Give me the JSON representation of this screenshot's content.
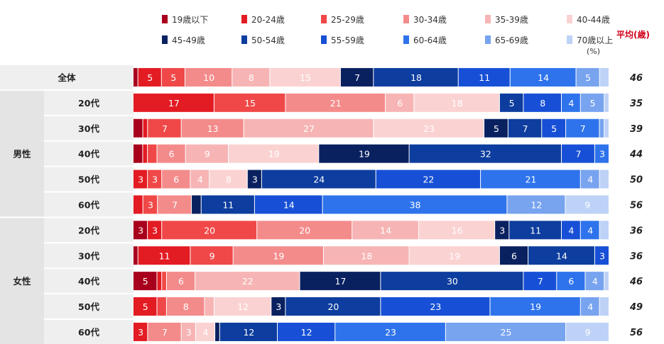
{
  "chart_data": {
    "type": "bar",
    "orientation": "horizontal-stacked-100",
    "unit": "(%)",
    "average_header": "平均(歳)",
    "series": [
      {
        "name": "19歳以下",
        "color": "#a8001c"
      },
      {
        "name": "20-24歳",
        "color": "#e31b23"
      },
      {
        "name": "25-29歳",
        "color": "#f04848"
      },
      {
        "name": "30-34歳",
        "color": "#f48b8b"
      },
      {
        "name": "35-39歳",
        "color": "#f7b4b4"
      },
      {
        "name": "40-44歳",
        "color": "#fbd2d2"
      },
      {
        "name": "45-49歳",
        "color": "#0a2160"
      },
      {
        "name": "50-54歳",
        "color": "#0d3d9e"
      },
      {
        "name": "55-59歳",
        "color": "#1750d6"
      },
      {
        "name": "60-64歳",
        "color": "#2e73ec"
      },
      {
        "name": "65-69歳",
        "color": "#78a3ef"
      },
      {
        "name": "70歳以上",
        "color": "#bdd2f6"
      }
    ],
    "groups": [
      {
        "label": "",
        "rows": [
          {
            "label": "全体",
            "values": [
              1,
              5,
              5,
              10,
              8,
              15,
              7,
              18,
              11,
              14,
              5,
              2
            ],
            "labels": [
              "",
              "5",
              "5",
              "10",
              "8",
              "15",
              "7",
              "18",
              "11",
              "14",
              "5",
              ""
            ],
            "avg": "46"
          }
        ]
      },
      {
        "label": "男性",
        "rows": [
          {
            "label": "20代",
            "values": [
              0,
              17,
              15,
              21,
              6,
              18,
              0,
              5,
              8,
              4,
              5,
              1
            ],
            "labels": [
              "",
              "17",
              "15",
              "21",
              "6",
              "18",
              "",
              "5",
              "8",
              "4",
              "5",
              ""
            ],
            "avg": "35"
          },
          {
            "label": "30代",
            "values": [
              2,
              1,
              7,
              13,
              27,
              23,
              5,
              7,
              5,
              7,
              1,
              1
            ],
            "labels": [
              "",
              "",
              "7",
              "13",
              "27",
              "23",
              "5",
              "7",
              "5",
              "7",
              "",
              ""
            ],
            "avg": "39"
          },
          {
            "label": "40代",
            "values": [
              2,
              1,
              2,
              6,
              9,
              19,
              19,
              32,
              7,
              3,
              0,
              0
            ],
            "labels": [
              "",
              "",
              "",
              "6",
              "9",
              "19",
              "19",
              "32",
              "7",
              "3",
              "",
              ""
            ],
            "avg": "44"
          },
          {
            "label": "50代",
            "values": [
              0,
              3,
              3,
              6,
              4,
              8,
              3,
              24,
              22,
              21,
              4,
              2
            ],
            "labels": [
              "",
              "3",
              "3",
              "6",
              "4",
              "8",
              "3",
              "24",
              "22",
              "21",
              "4",
              ""
            ],
            "avg": "50"
          },
          {
            "label": "60代",
            "values": [
              0,
              2,
              3,
              7,
              0,
              0,
              2,
              11,
              14,
              38,
              12,
              9
            ],
            "labels": [
              "",
              "",
              "3",
              "7",
              "",
              "",
              "",
              "11",
              "14",
              "38",
              "12",
              "9"
            ],
            "avg": "56"
          }
        ]
      },
      {
        "label": "女性",
        "rows": [
          {
            "label": "20代",
            "values": [
              3,
              3,
              20,
              20,
              14,
              16,
              3,
              11,
              4,
              4,
              0,
              2
            ],
            "labels": [
              "3",
              "3",
              "20",
              "20",
              "14",
              "16",
              "3",
              "11",
              "4",
              "4",
              "",
              ""
            ],
            "avg": "36"
          },
          {
            "label": "30代",
            "values": [
              1,
              11,
              9,
              19,
              18,
              19,
              6,
              14,
              3,
              0,
              0,
              0
            ],
            "labels": [
              "",
              "11",
              "9",
              "19",
              "18",
              "19",
              "6",
              "14",
              "3",
              "",
              "",
              ""
            ],
            "avg": "36"
          },
          {
            "label": "40代",
            "values": [
              5,
              1,
              1,
              6,
              22,
              0,
              17,
              30,
              7,
              6,
              4,
              1
            ],
            "labels": [
              "5",
              "",
              "",
              "6",
              "22",
              "",
              "17",
              "30",
              "7",
              "6",
              "4",
              ""
            ],
            "avg": "46"
          },
          {
            "label": "50代",
            "values": [
              0,
              5,
              2,
              8,
              2,
              12,
              3,
              20,
              23,
              19,
              4,
              2
            ],
            "labels": [
              "",
              "5",
              "",
              "8",
              "",
              "12",
              "3",
              "20",
              "23",
              "19",
              "4",
              ""
            ],
            "avg": "49"
          },
          {
            "label": "60代",
            "values": [
              0,
              3,
              0,
              7,
              3,
              4,
              1,
              12,
              12,
              23,
              25,
              9
            ],
            "labels": [
              "",
              "3",
              "",
              "7",
              "3",
              "4",
              "",
              "12",
              "12",
              "23",
              "25",
              "9"
            ],
            "avg": "56"
          }
        ]
      }
    ]
  }
}
